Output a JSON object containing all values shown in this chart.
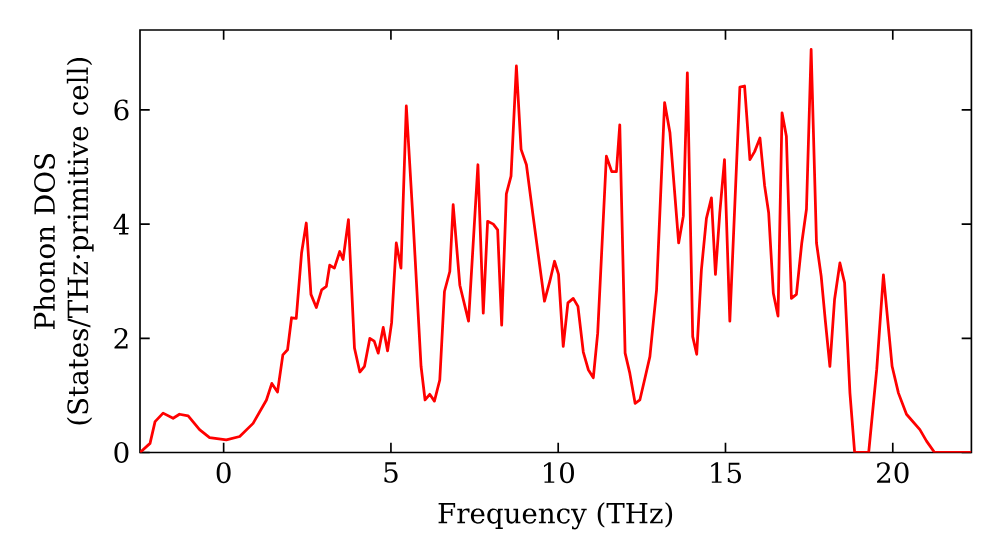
{
  "chart_data": {
    "type": "line",
    "xlabel": "Frequency (THz)",
    "ylabel": "Phonon DOS (States/THz·primitive cell)",
    "xlim": [
      -2.5,
      22.35
    ],
    "ylim": [
      0,
      7.4
    ],
    "xticks": [
      0,
      5,
      10,
      15,
      20
    ],
    "yticks": [
      0,
      2,
      4,
      6
    ],
    "x": [
      -2.5,
      -2.2,
      -2.05,
      -1.81,
      -1.51,
      -1.32,
      -1.06,
      -0.72,
      -0.42,
      0.08,
      0.48,
      0.88,
      1.28,
      1.44,
      1.61,
      1.77,
      1.91,
      2.03,
      2.17,
      2.33,
      2.47,
      2.61,
      2.77,
      2.93,
      3.07,
      3.17,
      3.31,
      3.47,
      3.57,
      3.73,
      3.91,
      4.07,
      4.21,
      4.37,
      4.5,
      4.62,
      4.77,
      4.9,
      5.02,
      5.16,
      5.3,
      5.46,
      5.66,
      5.9,
      6.02,
      6.16,
      6.3,
      6.46,
      6.6,
      6.76,
      6.86,
      7.06,
      7.32,
      7.6,
      7.76,
      7.89,
      8.06,
      8.19,
      8.31,
      8.45,
      8.59,
      8.75,
      8.89,
      9.05,
      9.25,
      9.41,
      9.59,
      9.75,
      9.89,
      10.01,
      10.15,
      10.29,
      10.45,
      10.59,
      10.75,
      10.9,
      11.05,
      11.18,
      11.44,
      11.6,
      11.74,
      11.84,
      12.0,
      12.14,
      12.3,
      12.44,
      12.58,
      12.74,
      12.94,
      13.18,
      13.34,
      13.6,
      13.74,
      13.86,
      14.02,
      14.14,
      14.28,
      14.43,
      14.58,
      14.7,
      14.83,
      14.97,
      15.13,
      15.29,
      15.43,
      15.57,
      15.73,
      15.87,
      16.03,
      16.17,
      16.29,
      16.43,
      16.57,
      16.69,
      16.82,
      16.97,
      17.12,
      17.28,
      17.42,
      17.56,
      17.72,
      17.86,
      17.98,
      18.12,
      18.26,
      18.42,
      18.56,
      18.72,
      18.86,
      19.28,
      19.52,
      19.72,
      19.98,
      20.17,
      20.41,
      20.81,
      21.01,
      21.25,
      22.35
    ],
    "series": [
      {
        "color": "#ff0000",
        "values": [
          0.0,
          0.16,
          0.54,
          0.69,
          0.6,
          0.67,
          0.64,
          0.4,
          0.26,
          0.22,
          0.28,
          0.51,
          0.92,
          1.21,
          1.06,
          1.71,
          1.8,
          2.36,
          2.35,
          3.5,
          4.02,
          2.77,
          2.54,
          2.85,
          2.91,
          3.28,
          3.23,
          3.52,
          3.38,
          4.08,
          1.83,
          1.41,
          1.51,
          2.0,
          1.95,
          1.74,
          2.19,
          1.78,
          2.27,
          3.67,
          3.23,
          6.07,
          4.08,
          1.51,
          0.92,
          1.02,
          0.9,
          1.27,
          2.82,
          3.17,
          4.34,
          2.93,
          2.3,
          5.04,
          2.44,
          4.05,
          4.0,
          3.9,
          2.23,
          4.53,
          4.84,
          6.77,
          5.31,
          5.04,
          4.14,
          3.44,
          2.65,
          3.0,
          3.35,
          3.12,
          1.86,
          2.62,
          2.7,
          2.56,
          1.76,
          1.45,
          1.31,
          2.09,
          5.19,
          4.92,
          4.92,
          5.74,
          1.74,
          1.39,
          0.86,
          0.92,
          1.27,
          1.68,
          2.85,
          6.13,
          5.6,
          3.67,
          4.14,
          6.65,
          2.03,
          1.72,
          3.2,
          4.1,
          4.46,
          3.12,
          4.2,
          5.13,
          2.3,
          4.49,
          6.4,
          6.42,
          5.13,
          5.27,
          5.51,
          4.67,
          4.2,
          2.79,
          2.39,
          5.95,
          5.54,
          2.7,
          2.77,
          3.67,
          4.26,
          7.06,
          3.67,
          3.09,
          2.33,
          1.51,
          2.68,
          3.32,
          2.97,
          1.04,
          0.0,
          0.0,
          1.45,
          3.11,
          1.51,
          1.04,
          0.67,
          0.4,
          0.2,
          0.0,
          0.0
        ]
      }
    ]
  }
}
